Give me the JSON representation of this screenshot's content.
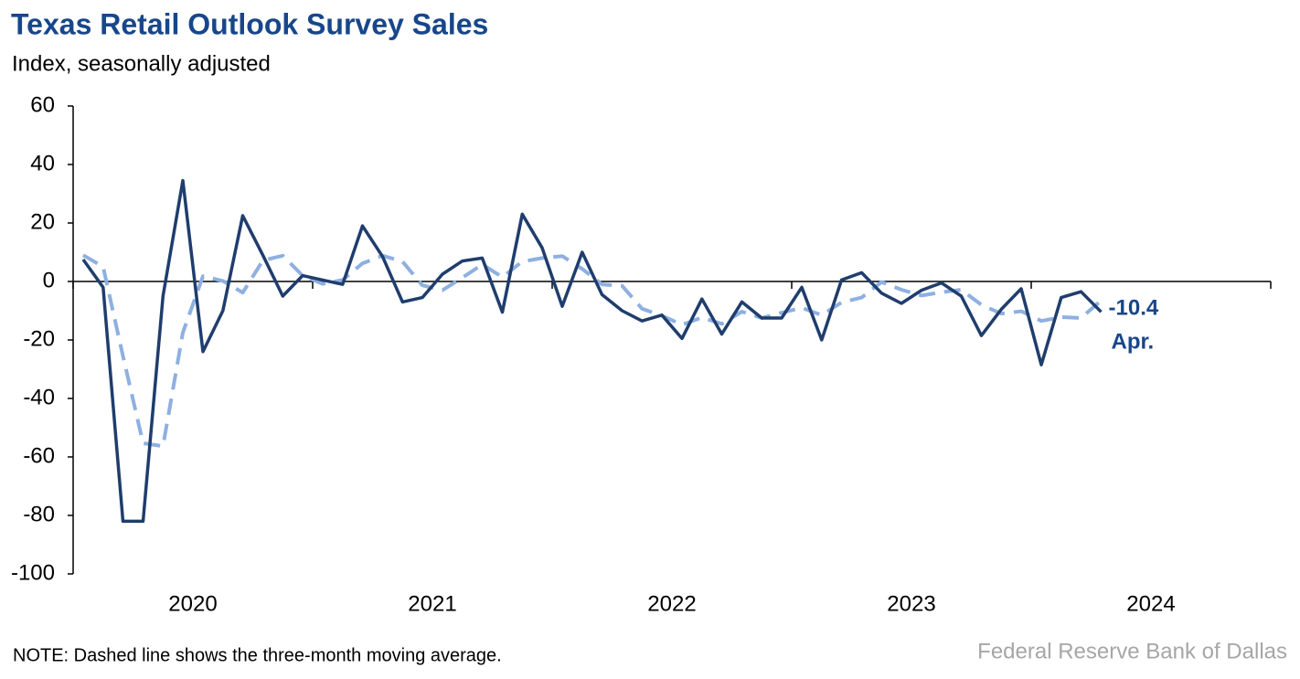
{
  "chart_data": {
    "type": "line",
    "title": "Texas Retail Outlook Survey Sales",
    "subtitle": "Index, seasonally adjusted",
    "note": "NOTE: Dashed line shows the three-month moving average.",
    "source": "Federal Reserve Bank of Dallas",
    "annotation": "Apr.",
    "x": [
      2020.042,
      2020.125,
      2020.208,
      2020.292,
      2020.375,
      2020.458,
      2020.542,
      2020.625,
      2020.708,
      2020.792,
      2020.875,
      2020.958,
      2021.042,
      2021.125,
      2021.208,
      2021.292,
      2021.375,
      2021.458,
      2021.542,
      2021.625,
      2021.708,
      2021.792,
      2021.875,
      2021.958,
      2022.042,
      2022.125,
      2022.208,
      2022.292,
      2022.375,
      2022.458,
      2022.542,
      2022.625,
      2022.708,
      2022.792,
      2022.875,
      2022.958,
      2023.042,
      2023.125,
      2023.208,
      2023.292,
      2023.375,
      2023.458,
      2023.542,
      2023.625,
      2023.708,
      2023.792,
      2023.875,
      2023.958,
      2024.042,
      2024.125,
      2024.208,
      2024.292
    ],
    "series": [
      {
        "name": "Sales",
        "color": "#1f3d6d",
        "dashed": false,
        "values": [
          7.5,
          -2,
          -82,
          -82,
          -5,
          34.5,
          -24,
          -10,
          22.5,
          9,
          -5,
          2,
          0.5,
          -1,
          19,
          8.5,
          -7,
          -5.5,
          2.5,
          7,
          8,
          -10.5,
          23,
          11.5,
          -8.5,
          10,
          -4.5,
          -10,
          -13.5,
          -11.5,
          -19.5,
          -6,
          -18,
          -7,
          -12.5,
          -12.5,
          -2,
          -20,
          0.5,
          3,
          -4,
          -7.5,
          -3,
          -0.5,
          -5,
          -18.5,
          -9.5,
          -2.5,
          -28.5,
          -5.5,
          -3.5,
          -10.4
        ]
      },
      {
        "name": "Three-month moving average",
        "color": "#8eb0e1",
        "dashed": true,
        "values": [
          9,
          5,
          -25.5,
          -55.3,
          -56.3,
          -17.5,
          1.8,
          0.2,
          -3.8,
          7.2,
          8.8,
          2,
          -0.8,
          0.5,
          6.2,
          8.8,
          6.8,
          -1.3,
          -3,
          1.3,
          5.8,
          1.5,
          6.8,
          8,
          8.7,
          4.3,
          -1,
          -1.5,
          -9.3,
          -11.7,
          -14.8,
          -12.3,
          -14.5,
          -10.3,
          -12.5,
          -10.7,
          -9,
          -11.5,
          -7.2,
          -5.5,
          -0.2,
          -2.8,
          -4.8,
          -3.7,
          -2.8,
          -8,
          -11,
          -10.2,
          -13.5,
          -12.2,
          -12.5,
          -6.5
        ]
      }
    ],
    "xlim": [
      2020,
      2025
    ],
    "xticks": [
      2020,
      2021,
      2022,
      2023,
      2024,
      2025
    ],
    "year_labels": [
      "2020",
      "2021",
      "2022",
      "2023",
      "2024"
    ],
    "ylim": [
      -100,
      60
    ],
    "yticks": [
      -100,
      -80,
      -60,
      -40,
      -20,
      0,
      20,
      40,
      60
    ],
    "grid": false
  }
}
